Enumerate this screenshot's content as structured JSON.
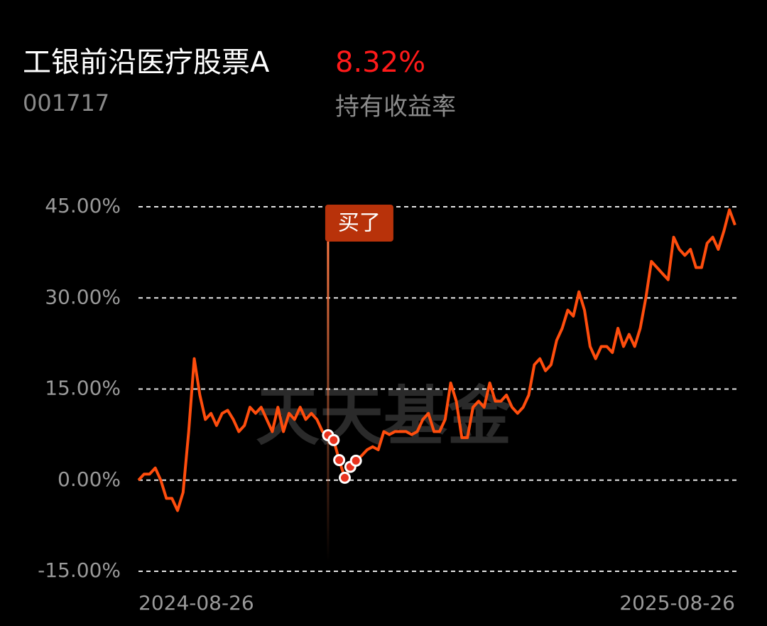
{
  "chart_data": {
    "type": "line",
    "title": "工银前沿医疗股票A",
    "code": "001717",
    "return_label": "8.32%",
    "return_caption": "持有收益率",
    "watermark": "天天基金",
    "categories": [
      "2024-08-26",
      null,
      null,
      null,
      null,
      null,
      null,
      null,
      null,
      null,
      null,
      null,
      null,
      null,
      null,
      null,
      null,
      null,
      null,
      null,
      null,
      null,
      null,
      null,
      null,
      null,
      null,
      null,
      null,
      null,
      null,
      null,
      null,
      null,
      null,
      null,
      null,
      null,
      null,
      null,
      null,
      null,
      null,
      null,
      null,
      null,
      null,
      null,
      null,
      null,
      null,
      null,
      null,
      null,
      null,
      null,
      null,
      null,
      null,
      null,
      null,
      null,
      null,
      null,
      null,
      null,
      null,
      null,
      null,
      null,
      null,
      null,
      null,
      null,
      null,
      null,
      null,
      null,
      null,
      null,
      null,
      null,
      null,
      null,
      null,
      null,
      null,
      null,
      null,
      null,
      null,
      null,
      null,
      null,
      null,
      null,
      null,
      null,
      null,
      null,
      null,
      null,
      null,
      null,
      null,
      null,
      null,
      "2025-08-26"
    ],
    "series": [
      {
        "color": "#ff4d0d",
        "values": [
          0,
          1,
          1,
          2,
          0,
          -3,
          -3,
          -5,
          -2,
          8,
          20,
          14,
          10,
          11,
          9,
          11,
          11.5,
          10,
          8,
          9,
          12,
          11,
          12,
          10,
          8,
          12,
          8,
          11,
          10,
          12,
          10,
          11,
          10,
          8,
          7.4,
          6.6,
          3.3,
          0.4,
          2.2,
          3.2,
          4,
          5,
          5.5,
          5,
          8,
          7.5,
          8,
          8,
          8,
          7.5,
          8,
          10,
          11,
          8,
          8,
          10,
          16,
          13,
          7,
          7,
          12,
          13,
          12,
          16,
          13,
          13,
          14,
          12,
          11,
          12,
          14,
          19,
          20,
          18,
          19,
          23,
          25,
          28,
          27,
          31,
          28,
          22,
          20,
          22,
          22,
          21,
          25,
          22,
          24,
          22,
          25,
          30,
          36,
          35,
          34,
          33,
          40,
          38,
          37,
          38,
          35,
          35,
          39,
          40,
          38,
          41,
          44.5,
          42
        ]
      }
    ],
    "buy": {
      "label": "买了",
      "indices": [
        34,
        35,
        36,
        37,
        38,
        39
      ]
    },
    "ylim": [
      -15,
      45
    ],
    "yticks": [
      {
        "value": -15,
        "label": "-15.00%"
      },
      {
        "value": 0,
        "label": "0.00%"
      },
      {
        "value": 15,
        "label": "15.00%"
      },
      {
        "value": 30,
        "label": "30.00%"
      },
      {
        "value": 45,
        "label": "45.00%"
      }
    ],
    "grid": true
  }
}
